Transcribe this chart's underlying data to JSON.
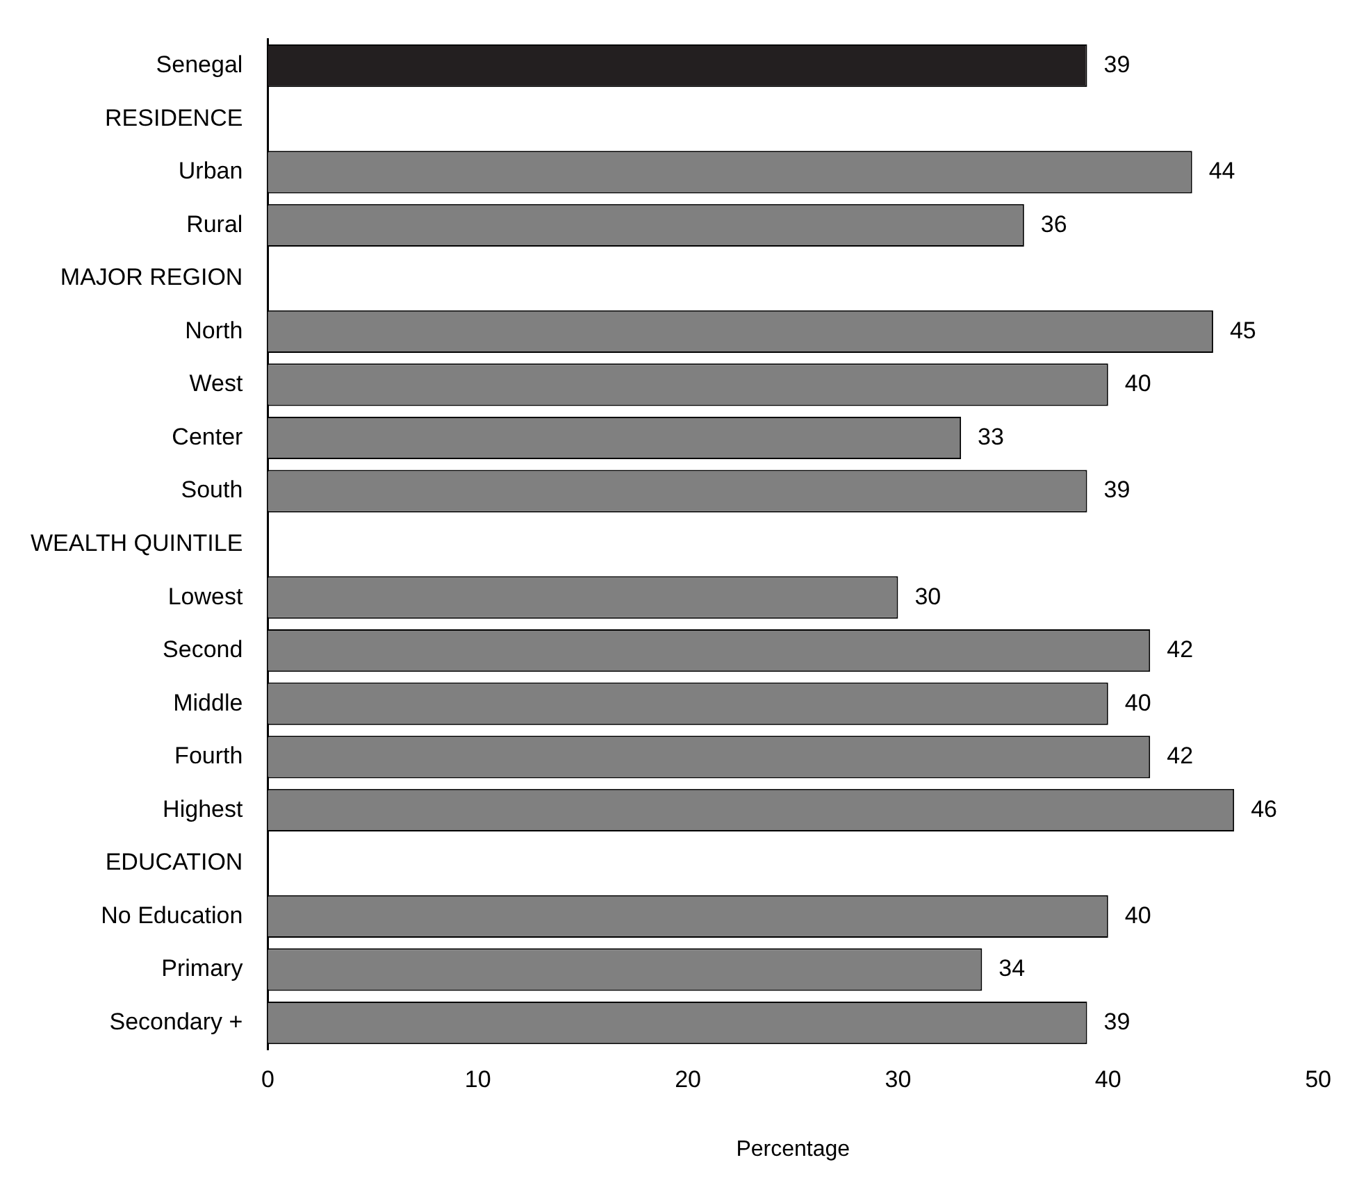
{
  "chart_data": {
    "type": "bar",
    "orientation": "horizontal",
    "xlabel": "Percentage",
    "categories": [
      "Senegal",
      "RESIDENCE",
      "Urban",
      "Rural",
      "MAJOR REGION",
      "North",
      "West",
      "Center",
      "South",
      "WEALTH QUINTILE",
      "Lowest",
      "Second",
      "Middle",
      "Fourth",
      "Highest",
      "EDUCATION",
      "No Education",
      "Primary",
      "Secondary +"
    ],
    "values": [
      39,
      null,
      44,
      36,
      null,
      45,
      40,
      33,
      39,
      null,
      30,
      42,
      40,
      42,
      46,
      null,
      40,
      34,
      39
    ],
    "colors": [
      "#231f20",
      "#808080",
      "#808080",
      "#808080",
      "#808080",
      "#808080",
      "#808080",
      "#808080",
      "#808080",
      "#808080",
      "#808080",
      "#808080",
      "#808080",
      "#808080",
      "#808080",
      "#808080",
      "#808080",
      "#808080",
      "#808080"
    ],
    "xlim": [
      0,
      50
    ],
    "xticks": [
      0,
      10,
      20,
      30,
      40,
      50
    ],
    "grid": false,
    "legend": false,
    "data_labels": true
  }
}
